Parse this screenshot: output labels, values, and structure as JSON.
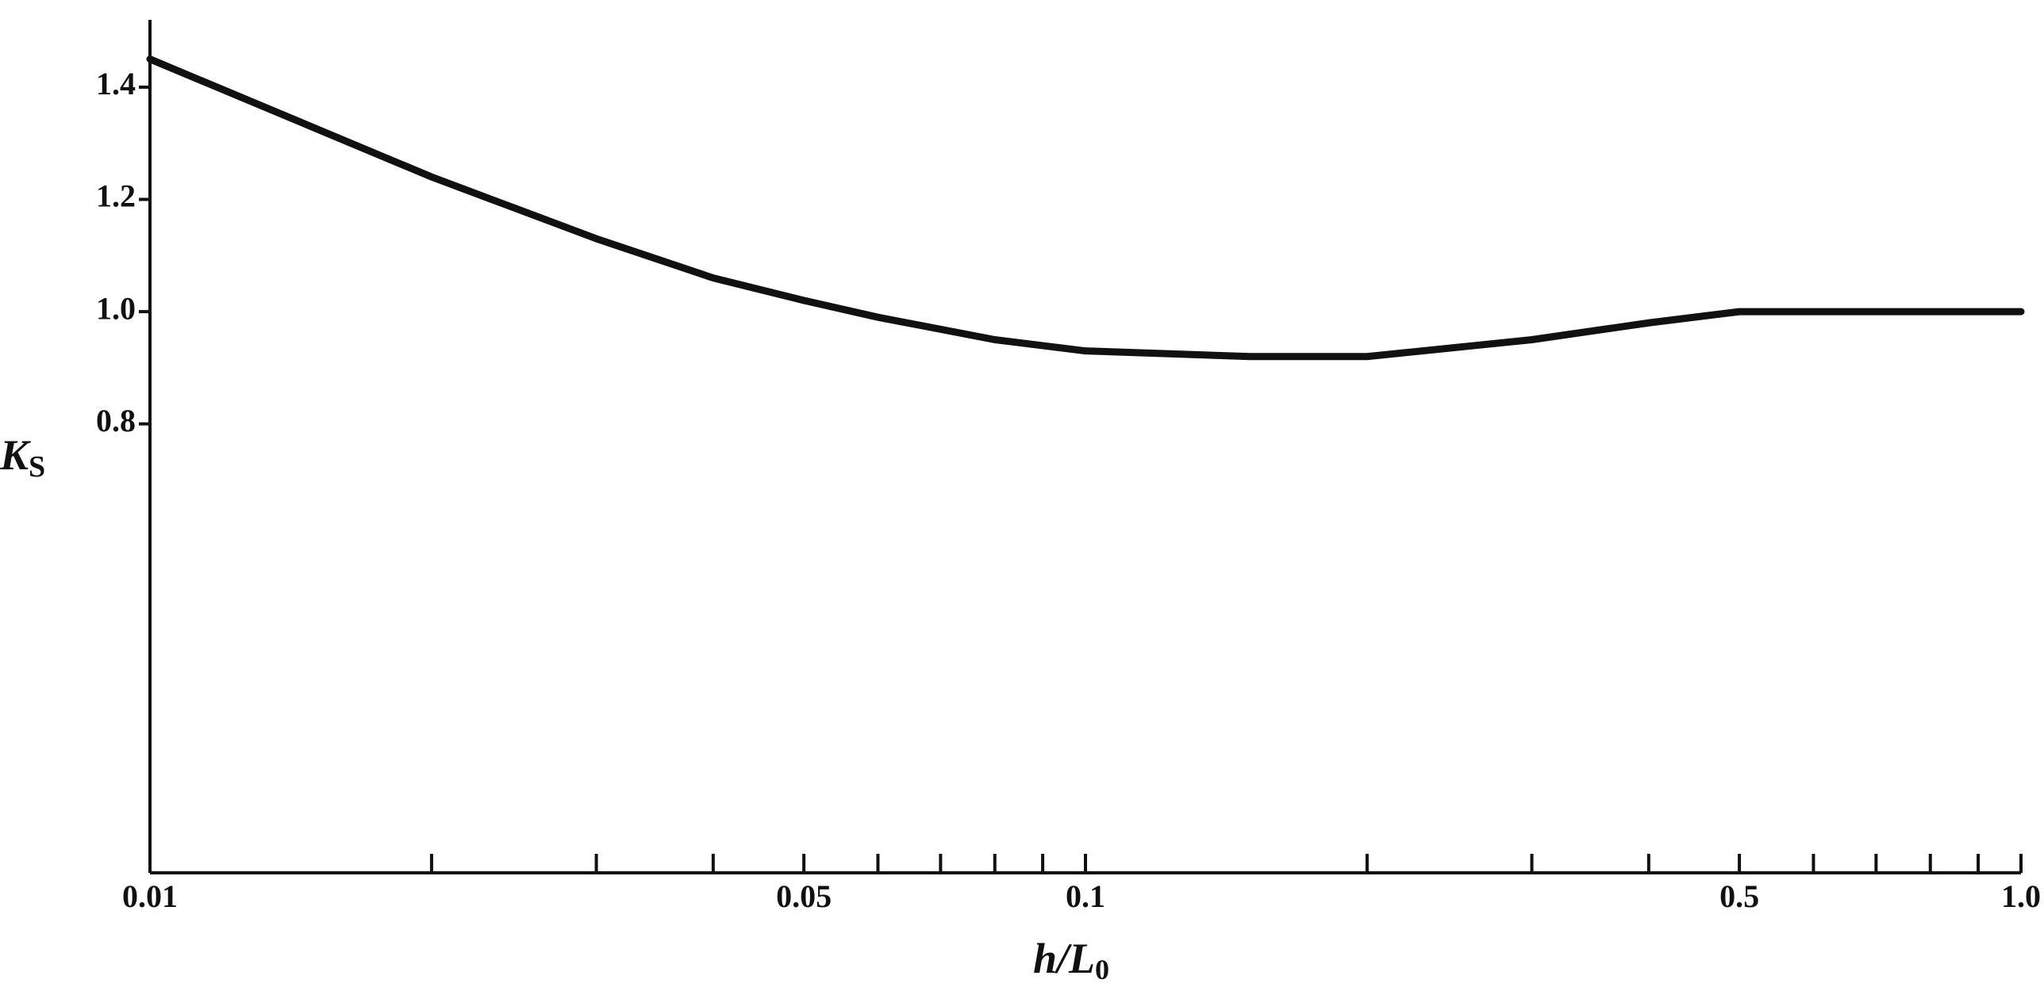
{
  "chart_data": {
    "type": "line",
    "xlabel": {
      "main": "h/L",
      "sub": "0"
    },
    "ylabel": {
      "main": "K",
      "sub": "S"
    },
    "xscale": "log",
    "x": [
      0.01,
      0.02,
      0.03,
      0.04,
      0.05,
      0.06,
      0.08,
      0.1,
      0.15,
      0.2,
      0.3,
      0.4,
      0.5,
      0.6,
      0.8,
      1.0
    ],
    "series": [
      {
        "color": "#111111",
        "values": [
          1.45,
          1.24,
          1.13,
          1.06,
          1.02,
          0.99,
          0.95,
          0.93,
          0.92,
          0.92,
          0.95,
          0.98,
          1.0,
          1.0,
          1.0,
          1.0
        ]
      }
    ],
    "xlim": [
      0.01,
      1
    ],
    "xticks": [
      0.01,
      0.05,
      0.1,
      0.5,
      {
        "value": 1,
        "label": "1.0"
      }
    ],
    "xminorticks": [
      0.02,
      0.03,
      0.04,
      0.06,
      0.07,
      0.08,
      0.09,
      0.2,
      0.3,
      0.4,
      0.6,
      0.7,
      0.8,
      0.9
    ],
    "ylim": [
      0,
      1.52
    ],
    "yticks": [
      0.8,
      {
        "value": 1,
        "label": "1.0"
      },
      1.2,
      1.4
    ],
    "grid": false
  }
}
